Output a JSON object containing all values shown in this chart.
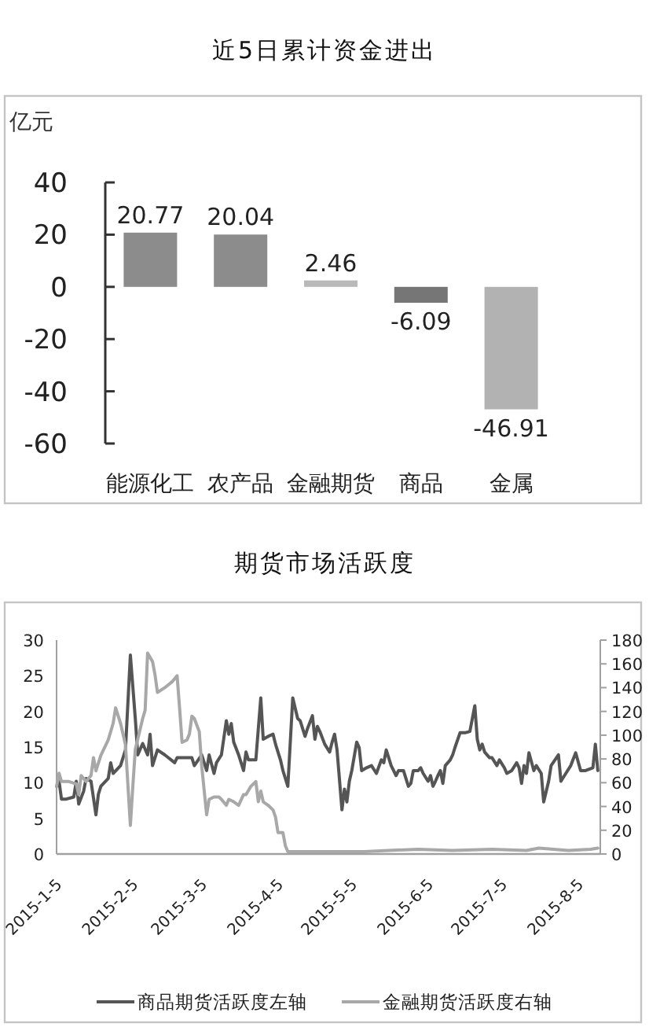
{
  "chart_data": [
    {
      "type": "bar",
      "title": "近5日累计资金进出",
      "ylabel": "亿元",
      "categories": [
        "能源化工",
        "农产品",
        "金融期货",
        "商品",
        "金属"
      ],
      "values": [
        20.77,
        20.04,
        2.46,
        -6.09,
        -46.91
      ],
      "colors": [
        "#8c8c8c",
        "#8c8c8c",
        "#b9b9b9",
        "#767676",
        "#b2b2b2"
      ],
      "ylim": [
        -60,
        40
      ],
      "yticks": [
        -60,
        -40,
        -20,
        0,
        20,
        40
      ],
      "data_labels": true
    },
    {
      "type": "line",
      "title": "期货市场活跃度",
      "xlim": [
        "2015-01-05",
        "2015-08-14"
      ],
      "xticks": [
        {
          "value": "2015-01-05",
          "label": "2015-1-5"
        },
        {
          "value": "2015-02-05",
          "label": "2015-2-5"
        },
        {
          "value": "2015-03-05",
          "label": "2015-3-5"
        },
        {
          "value": "2015-04-05",
          "label": "2015-4-5"
        },
        {
          "value": "2015-05-05",
          "label": "2015-5-5"
        },
        {
          "value": "2015-06-05",
          "label": "2015-6-5"
        },
        {
          "value": "2015-07-05",
          "label": "2015-7-5"
        },
        {
          "value": "2015-08-05",
          "label": "2015-8-5"
        }
      ],
      "ylim": [
        0,
        30
      ],
      "yticks": [
        0,
        5,
        10,
        15,
        20,
        25,
        30
      ],
      "y2lim": [
        0,
        180
      ],
      "y2ticks": [
        0,
        20,
        40,
        60,
        80,
        100,
        120,
        140,
        160,
        180
      ],
      "legend": "bottom",
      "series": [
        {
          "name": "商品期货活跃度左轴",
          "color": "#555555",
          "x": [
            "2015-01-05",
            "2015-01-06",
            "2015-01-07",
            "2015-01-09",
            "2015-01-12",
            "2015-01-13",
            "2015-01-14",
            "2015-01-16",
            "2015-01-17",
            "2015-01-19",
            "2015-01-21",
            "2015-01-22",
            "2015-01-23",
            "2015-01-26",
            "2015-01-27",
            "2015-01-28",
            "2015-01-31",
            "2015-02-02",
            "2015-02-04",
            "2015-02-06",
            "2015-02-07",
            "2015-02-09",
            "2015-02-11",
            "2015-02-12",
            "2015-02-13",
            "2015-02-15",
            "2015-02-18",
            "2015-02-22",
            "2015-02-23",
            "2015-03-01",
            "2015-03-02",
            "2015-03-05",
            "2015-03-07",
            "2015-03-08",
            "2015-03-10",
            "2015-03-11",
            "2015-03-13",
            "2015-03-15",
            "2015-03-16",
            "2015-03-17",
            "2015-03-18",
            "2015-03-20",
            "2015-03-22",
            "2015-03-23",
            "2015-03-24",
            "2015-03-27",
            "2015-03-29",
            "2015-03-30",
            "2015-04-01",
            "2015-04-03",
            "2015-04-04",
            "2015-04-06",
            "2015-04-07",
            "2015-04-09",
            "2015-04-11",
            "2015-04-13",
            "2015-04-14",
            "2015-04-16",
            "2015-04-17",
            "2015-04-19",
            "2015-04-20",
            "2015-04-21",
            "2015-04-22",
            "2015-04-24",
            "2015-04-26",
            "2015-04-27",
            "2015-04-28",
            "2015-04-29",
            "2015-05-01",
            "2015-05-02",
            "2015-05-03",
            "2015-05-04",
            "2015-05-05",
            "2015-05-07",
            "2015-05-08",
            "2015-05-09",
            "2015-05-11",
            "2015-05-13",
            "2015-05-15",
            "2015-05-17",
            "2015-05-18",
            "2015-05-19",
            "2015-05-21",
            "2015-05-23",
            "2015-05-24",
            "2015-05-26",
            "2015-05-28",
            "2015-05-29",
            "2015-05-30",
            "2015-06-01",
            "2015-06-02",
            "2015-06-03",
            "2015-06-05",
            "2015-06-06",
            "2015-06-07",
            "2015-06-08",
            "2015-06-09",
            "2015-06-10",
            "2015-06-11",
            "2015-06-12",
            "2015-06-14",
            "2015-06-15",
            "2015-06-16",
            "2015-06-18",
            "2015-06-20",
            "2015-06-22",
            "2015-06-24",
            "2015-06-25",
            "2015-06-26",
            "2015-06-27",
            "2015-06-28",
            "2015-06-30",
            "2015-07-01",
            "2015-07-03",
            "2015-07-04",
            "2015-07-06",
            "2015-07-07",
            "2015-07-09",
            "2015-07-11",
            "2015-07-12",
            "2015-07-13",
            "2015-07-14",
            "2015-07-15",
            "2015-07-16",
            "2015-07-18",
            "2015-07-19",
            "2015-07-21",
            "2015-07-22",
            "2015-07-24",
            "2015-07-25",
            "2015-07-28",
            "2015-07-29",
            "2015-07-31",
            "2015-08-02",
            "2015-08-04",
            "2015-08-06",
            "2015-08-08",
            "2015-08-11",
            "2015-08-12",
            "2015-08-13"
          ],
          "values": [
            9.5,
            10.2,
            7.7,
            7.7,
            8.0,
            10.2,
            7.0,
            8.8,
            10.6,
            10.2,
            5.5,
            8.4,
            9.5,
            10.6,
            12.8,
            11.3,
            12.4,
            14.6,
            27.9,
            19.0,
            13.9,
            15.5,
            13.9,
            16.8,
            12.4,
            14.6,
            13.9,
            12.8,
            13.5,
            13.5,
            12.4,
            13.9,
            11.7,
            13.9,
            11.3,
            12.8,
            13.9,
            18.7,
            16.8,
            18.3,
            15.7,
            13.9,
            11.7,
            14.3,
            13.2,
            13.2,
            21.9,
            16.1,
            16.5,
            16.8,
            15.4,
            13.2,
            11.7,
            9.5,
            21.9,
            19.0,
            18.7,
            16.5,
            17.6,
            19.4,
            16.1,
            17.9,
            17.2,
            15.4,
            14.3,
            15.7,
            16.8,
            14.6,
            6.2,
            9.1,
            7.3,
            10.2,
            11.7,
            15.7,
            14.9,
            11.7,
            12.1,
            12.4,
            11.3,
            13.2,
            12.8,
            14.6,
            12.4,
            11.0,
            11.7,
            11.7,
            9.5,
            9.9,
            11.7,
            11.7,
            12.1,
            11.3,
            10.2,
            11.0,
            9.5,
            10.2,
            11.0,
            11.7,
            9.9,
            12.4,
            13.2,
            13.9,
            15.0,
            17.0,
            17.0,
            17.2,
            20.8,
            16.1,
            14.6,
            15.4,
            14.3,
            13.5,
            13.5,
            12.4,
            13.2,
            12.1,
            11.3,
            11.7,
            12.8,
            12.1,
            9.9,
            12.4,
            11.3,
            14.2,
            11.7,
            12.4,
            11.3,
            7.3,
            10.2,
            12.4,
            13.9,
            10.2,
            11.3,
            12.4,
            14.2,
            11.7,
            11.7,
            12.1,
            15.4,
            11.7
          ]
        },
        {
          "name": "金融期货活跃度右轴",
          "color": "#a8a8a8",
          "axis": "y2",
          "x": [
            "2015-01-05",
            "2015-01-06",
            "2015-01-07",
            "2015-01-10",
            "2015-01-13",
            "2015-01-14",
            "2015-01-15",
            "2015-01-17",
            "2015-01-19",
            "2015-01-20",
            "2015-01-21",
            "2015-01-23",
            "2015-01-26",
            "2015-01-28",
            "2015-01-29",
            "2015-01-31",
            "2015-02-02",
            "2015-02-04",
            "2015-02-05",
            "2015-02-06",
            "2015-02-09",
            "2015-02-10",
            "2015-02-11",
            "2015-02-13",
            "2015-02-14",
            "2015-02-15",
            "2015-02-18",
            "2015-02-21",
            "2015-02-23",
            "2015-02-24",
            "2015-02-25",
            "2015-02-27",
            "2015-02-28",
            "2015-03-01",
            "2015-03-02",
            "2015-03-04",
            "2015-03-05",
            "2015-03-07",
            "2015-03-08",
            "2015-03-10",
            "2015-03-12",
            "2015-03-13",
            "2015-03-15",
            "2015-03-16",
            "2015-03-18",
            "2015-03-20",
            "2015-03-22",
            "2015-03-23",
            "2015-03-25",
            "2015-03-27",
            "2015-03-28",
            "2015-03-29",
            "2015-03-30",
            "2015-04-01",
            "2015-04-03",
            "2015-04-04",
            "2015-04-05",
            "2015-04-07",
            "2015-04-08",
            "2015-04-09",
            "2015-04-20",
            "2015-05-01",
            "2015-05-10",
            "2015-05-20",
            "2015-06-01",
            "2015-06-15",
            "2015-07-01",
            "2015-07-15",
            "2015-07-20",
            "2015-08-01",
            "2015-08-10",
            "2015-08-13"
          ],
          "values": [
            57,
            68,
            61,
            61,
            59,
            50,
            66,
            61,
            66,
            81,
            70,
            83,
            96,
            110,
            123,
            110,
            92,
            24,
            57,
            88,
            114,
            121,
            169,
            162,
            151,
            136,
            140,
            145,
            150,
            123,
            94,
            96,
            101,
            116,
            114,
            103,
            74,
            33,
            46,
            48,
            48,
            46,
            41,
            46,
            44,
            41,
            50,
            50,
            57,
            61,
            44,
            53,
            44,
            41,
            37,
            31,
            18,
            18,
            7,
            2,
            2,
            2,
            2,
            3,
            4,
            3,
            4,
            3,
            5,
            3,
            4,
            5
          ]
        }
      ]
    }
  ]
}
